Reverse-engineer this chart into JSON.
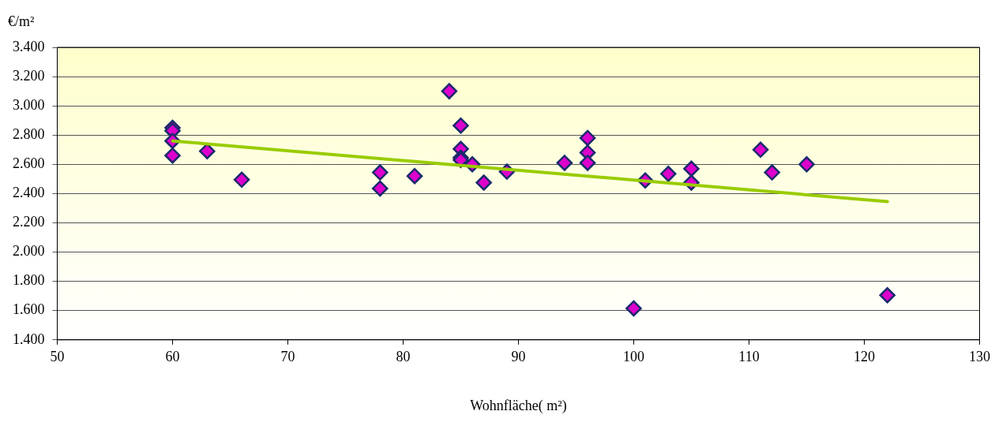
{
  "chart_data": {
    "type": "scatter",
    "xlabel": "Wohnfläche( m²)",
    "ylabel": "€/m²",
    "xlim": [
      50,
      130
    ],
    "xticks": [
      50,
      60,
      70,
      80,
      90,
      100,
      110,
      120,
      130
    ],
    "ylim": [
      1400,
      3400
    ],
    "yticks": [
      {
        "value": 1400,
        "label": "1.400"
      },
      {
        "value": 1600,
        "label": "1.600"
      },
      {
        "value": 1800,
        "label": "1.800"
      },
      {
        "value": 2000,
        "label": "2.000"
      },
      {
        "value": 2200,
        "label": "2.200"
      },
      {
        "value": 2400,
        "label": "2.400"
      },
      {
        "value": 2600,
        "label": "2.600"
      },
      {
        "value": 2800,
        "label": "2.800"
      },
      {
        "value": 3000,
        "label": "3.000"
      },
      {
        "value": 3200,
        "label": "3.200"
      },
      {
        "value": 3400,
        "label": "3.400"
      }
    ],
    "grid": "y",
    "legend": false,
    "marker": "diamond",
    "series": [
      {
        "color": "#dd00cc",
        "x": [
          60,
          60,
          60,
          60,
          63,
          66,
          78,
          78,
          81,
          84,
          85,
          85,
          85,
          85,
          86,
          87,
          89,
          94,
          96,
          96,
          96,
          100,
          101,
          103,
          105,
          105,
          111,
          112,
          115,
          122
        ],
        "values": [
          2850,
          2830,
          2760,
          2660,
          2690,
          2495,
          2545,
          2435,
          2520,
          3100,
          2865,
          2705,
          2645,
          2630,
          2600,
          2475,
          2550,
          2610,
          2780,
          2680,
          2610,
          1615,
          2490,
          2535,
          2570,
          2475,
          2700,
          2545,
          2600,
          1705
        ]
      },
      {
        "type": "line",
        "color": "#99cc00",
        "x": [
          60,
          122
        ],
        "values": [
          2760,
          2345
        ],
        "marker": "none"
      }
    ]
  }
}
